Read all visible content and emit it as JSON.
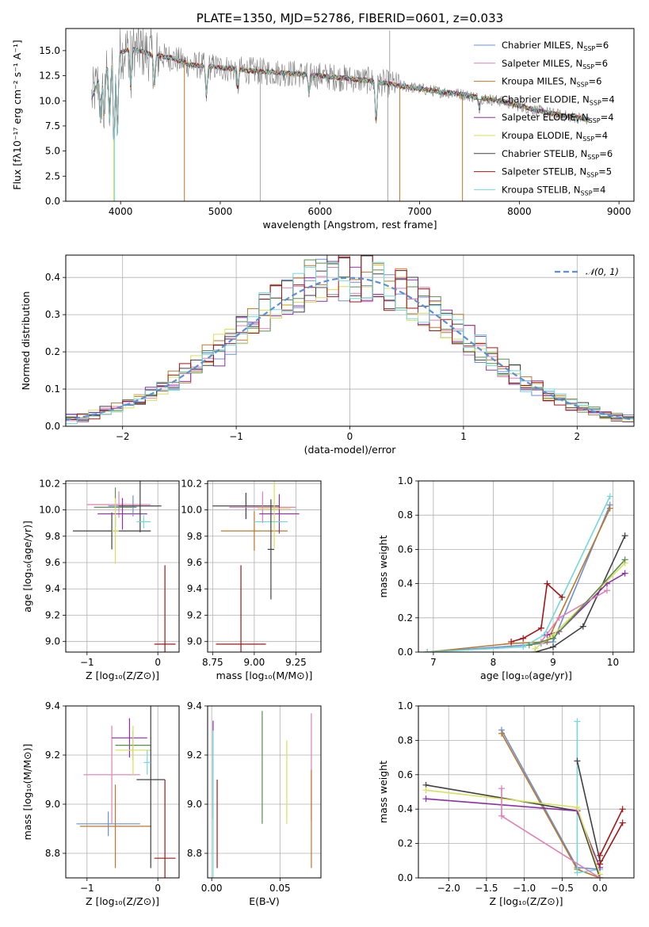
{
  "chart_data": [
    {
      "id": "spectrum",
      "type": "line",
      "title": "PLATE=1350, MJD=52786, FIBERID=0601, z=0.033",
      "xlabel": "wavelength [Angstrom, rest frame]",
      "ylabel": "Flux [fλ10⁻¹⁷ erg cm⁻² s⁻¹ A⁻¹]",
      "xlim": [
        3450,
        9150
      ],
      "ylim": [
        0,
        17.2
      ],
      "xticks": [
        "4000",
        "5000",
        "6000",
        "7000",
        "8000",
        "9000"
      ],
      "yticks": [
        "0.0",
        "2.5",
        "5.0",
        "7.5",
        "10.0",
        "12.5",
        "15.0"
      ],
      "legend_position": "upper-right",
      "series": [
        {
          "name": "Chabrier MILES, N",
          "sub": "SSP",
          "suffix": "=6",
          "color": "#6b8fd6"
        },
        {
          "name": "Salpeter MILES, N",
          "sub": "SSP",
          "suffix": "=6",
          "color": "#e07fb6"
        },
        {
          "name": "Kroupa MILES, N",
          "sub": "SSP",
          "suffix": "=6",
          "color": "#b9782b"
        },
        {
          "name": "Chabrier ELODIE, N",
          "sub": "SSP",
          "suffix": "=4",
          "color": "#5a8f4e"
        },
        {
          "name": "Salpeter ELODIE, N",
          "sub": "SSP",
          "suffix": "=4",
          "color": "#8e2ea8"
        },
        {
          "name": "Kroupa ELODIE, N",
          "sub": "SSP",
          "suffix": "=4",
          "color": "#d6e05a"
        },
        {
          "name": "Chabrier STELIB, N",
          "sub": "SSP",
          "suffix": "=6",
          "color": "#404040"
        },
        {
          "name": "Salpeter STELIB, N",
          "sub": "SSP",
          "suffix": "=5",
          "color": "#a31616"
        },
        {
          "name": "Kroupa STELIB, N",
          "sub": "SSP",
          "suffix": "=4",
          "color": "#72d8dc"
        }
      ],
      "data_color": "#808080",
      "continuum": {
        "x": [
          3700,
          3800,
          3850,
          3900,
          3950,
          4000,
          4100,
          4200,
          4300,
          4500,
          4700,
          5000,
          5300,
          5600,
          5900,
          6200,
          6500,
          6800,
          7000,
          7200,
          7400,
          7600,
          7800,
          8000,
          8200,
          8400,
          8600,
          8700
        ],
        "y": [
          12.0,
          12.5,
          13.2,
          13.8,
          14.5,
          14.8,
          15.2,
          15.0,
          14.6,
          14.3,
          13.6,
          13.3,
          13.0,
          12.8,
          12.6,
          12.3,
          12.0,
          11.5,
          11.2,
          10.9,
          10.7,
          10.3,
          10.0,
          9.5,
          9.0,
          8.6,
          8.3,
          8.1
        ]
      }
    },
    {
      "id": "residuals",
      "type": "histogram",
      "xlabel": "(data-model)/error",
      "ylabel": "Normed distribution",
      "xlim": [
        -2.5,
        2.5
      ],
      "ylim": [
        0,
        0.46
      ],
      "xticks": [
        "−2",
        "−1",
        "0",
        "1",
        "2"
      ],
      "yticks": [
        "0.0",
        "0.1",
        "0.2",
        "0.3",
        "0.4"
      ],
      "legend": "𝒩(0, 1)",
      "legend_position": "upper-right",
      "gauss_color": "#5b8fd6",
      "bins": [
        -2.5,
        -2.4,
        -2.3,
        -2.2,
        -2.1,
        -2.0,
        -1.9,
        -1.8,
        -1.7,
        -1.6,
        -1.5,
        -1.4,
        -1.3,
        -1.2,
        -1.1,
        -1.0,
        -0.9,
        -0.8,
        -0.7,
        -0.6,
        -0.5,
        -0.4,
        -0.3,
        -0.2,
        -0.1,
        0.0,
        0.1,
        0.2,
        0.3,
        0.4,
        0.5,
        0.6,
        0.7,
        0.8,
        0.9,
        1.0,
        1.1,
        1.2,
        1.3,
        1.4,
        1.5,
        1.6,
        1.7,
        1.8,
        1.9,
        2.0,
        2.1,
        2.2,
        2.3,
        2.4,
        2.5
      ]
    },
    {
      "id": "age-vs-z",
      "type": "errorbar",
      "xlabel": "Z [log₁₀(Z/Z⊙)]",
      "ylabel": "age  [log₁₀(age/yr)]",
      "xlim": [
        -1.3,
        0.3
      ],
      "ylim": [
        8.92,
        10.22
      ],
      "xticks": [
        "−1",
        "0"
      ],
      "yticks": [
        "9.0",
        "9.2",
        "9.4",
        "9.6",
        "9.8",
        "10.0",
        "10.2"
      ],
      "points": [
        {
          "x": -0.65,
          "xerr": 0.55,
          "y": 9.84,
          "yerr": 0.14,
          "c": 6
        },
        {
          "x": -0.55,
          "xerr": 0.45,
          "y": 10.04,
          "yerr": 0.1,
          "c": 1
        },
        {
          "x": -0.6,
          "xerr": 0.3,
          "y": 10.02,
          "yerr": 0.15,
          "c": 3
        },
        {
          "x": -0.5,
          "xerr": 0.35,
          "y": 9.97,
          "yerr": 0.12,
          "c": 4
        },
        {
          "x": -0.35,
          "xerr": 0.35,
          "y": 10.03,
          "yerr": 0.08,
          "c": 0
        },
        {
          "x": -0.25,
          "xerr": 0.3,
          "y": 10.03,
          "yerr": 0.2,
          "c": 6
        },
        {
          "x": -0.2,
          "xerr": 0.1,
          "y": 9.91,
          "yerr": 0.05,
          "c": 8
        },
        {
          "x": 0.1,
          "xerr": 0.15,
          "y": 8.98,
          "yerr": 0.6,
          "c": 7
        },
        {
          "x": -0.6,
          "xerr": 0.05,
          "y": 9.84,
          "yerr": 0.25,
          "c": 5
        }
      ]
    },
    {
      "id": "age-vs-mass",
      "type": "errorbar",
      "xlabel": "mass [log₁₀(M/M⊙)]",
      "ylabel": "",
      "xlim": [
        8.72,
        9.4
      ],
      "ylim": [
        8.92,
        10.22
      ],
      "xticks": [
        "8.75",
        "9.00",
        "9.25"
      ],
      "yticks": [
        "9.0",
        "9.2",
        "9.4",
        "9.6",
        "9.8",
        "10.0",
        "10.2"
      ],
      "points": [
        {
          "x": 8.95,
          "xerr": 0.2,
          "y": 10.03,
          "yerr": 0.1,
          "c": 6
        },
        {
          "x": 9.05,
          "xerr": 0.2,
          "y": 10.02,
          "yerr": 0.12,
          "c": 1
        },
        {
          "x": 9.0,
          "xerr": 0.2,
          "y": 9.84,
          "yerr": 0.15,
          "c": 2
        },
        {
          "x": 9.15,
          "xerr": 0.12,
          "y": 9.97,
          "yerr": 0.15,
          "c": 4
        },
        {
          "x": 9.12,
          "xerr": 0.1,
          "y": 10.01,
          "yerr": 0.3,
          "c": 5
        },
        {
          "x": 9.1,
          "xerr": 0.1,
          "y": 9.91,
          "yerr": 0.05,
          "c": 8
        },
        {
          "x": 8.92,
          "xerr": 0.15,
          "y": 8.98,
          "yerr": 0.6,
          "c": 7
        },
        {
          "x": 9.1,
          "xerr": 0.02,
          "y": 9.7,
          "yerr": 0.38,
          "c": 6
        }
      ]
    },
    {
      "id": "massweight-vs-age",
      "type": "line",
      "xlabel": "age  [log₁₀(age/yr)]",
      "ylabel": "mass weight",
      "xlim": [
        6.75,
        10.35
      ],
      "ylim": [
        0,
        1.0
      ],
      "xticks": [
        "7",
        "8",
        "9",
        "10"
      ],
      "yticks": [
        "0.0",
        "0.2",
        "0.4",
        "0.6",
        "0.8",
        "1.0"
      ],
      "series": [
        {
          "c": 0,
          "x": [
            6.9,
            8.5,
            8.8,
            9.0,
            9.95
          ],
          "y": [
            0.0,
            0.04,
            0.05,
            0.06,
            0.86
          ]
        },
        {
          "c": 2,
          "x": [
            6.9,
            8.3,
            8.9,
            9.95
          ],
          "y": [
            0.0,
            0.05,
            0.06,
            0.84
          ]
        },
        {
          "c": 8,
          "x": [
            6.9,
            8.5,
            8.85,
            9.95
          ],
          "y": [
            0.0,
            0.03,
            0.1,
            0.91
          ]
        },
        {
          "c": 7,
          "x": [
            8.3,
            8.5,
            8.8,
            8.9,
            9.15
          ],
          "y": [
            0.06,
            0.08,
            0.14,
            0.4,
            0.32
          ]
        },
        {
          "c": 6,
          "x": [
            8.7,
            9.0,
            9.5,
            10.2
          ],
          "y": [
            0.0,
            0.03,
            0.15,
            0.68
          ]
        },
        {
          "c": 4,
          "x": [
            8.9,
            9.1,
            9.9,
            10.2
          ],
          "y": [
            0.1,
            0.12,
            0.4,
            0.46
          ]
        },
        {
          "c": 5,
          "x": [
            8.7,
            9.0,
            10.2
          ],
          "y": [
            0.02,
            0.1,
            0.52
          ]
        },
        {
          "c": 1,
          "x": [
            8.8,
            9.1,
            9.9
          ],
          "y": [
            0.06,
            0.2,
            0.36
          ]
        },
        {
          "c": 3,
          "x": [
            8.6,
            9.0,
            10.2
          ],
          "y": [
            0.04,
            0.08,
            0.54
          ]
        }
      ]
    },
    {
      "id": "mass-vs-z",
      "type": "errorbar",
      "xlabel": "Z [log₁₀(Z/Z⊙)]",
      "ylabel": "mass [log₁₀(M/M⊙)]",
      "xlim": [
        -1.3,
        0.3
      ],
      "ylim": [
        8.7,
        9.4
      ],
      "xticks": [
        "−1",
        "0"
      ],
      "yticks": [
        "8.8",
        "9.0",
        "9.2",
        "9.4"
      ],
      "points": [
        {
          "x": -0.7,
          "xerr": 0.45,
          "y": 8.92,
          "yerr": 0.05,
          "c": 0
        },
        {
          "x": -0.6,
          "xerr": 0.5,
          "y": 8.91,
          "yerr": 0.17,
          "c": 2
        },
        {
          "x": -0.65,
          "xerr": 0.4,
          "y": 9.12,
          "yerr": 0.2,
          "c": 1
        },
        {
          "x": -0.4,
          "xerr": 0.25,
          "y": 9.27,
          "yerr": 0.08,
          "c": 4
        },
        {
          "x": -0.35,
          "xerr": 0.25,
          "y": 9.24,
          "yerr": 0.06,
          "c": 3
        },
        {
          "x": -0.35,
          "xerr": 0.25,
          "y": 9.22,
          "yerr": 0.1,
          "c": 5
        },
        {
          "x": -0.1,
          "xerr": 0.2,
          "y": 9.1,
          "yerr": 0.36,
          "c": 6
        },
        {
          "x": -0.15,
          "xerr": 0.05,
          "y": 9.17,
          "yerr": 0.05,
          "c": 8
        },
        {
          "x": 0.1,
          "xerr": 0.15,
          "y": 8.78,
          "yerr": 0.32,
          "c": 7
        }
      ]
    },
    {
      "id": "mass-vs-ebv",
      "type": "errorbar",
      "xlabel": "E(B-V)",
      "ylabel": "",
      "xlim": [
        -0.003,
        0.08
      ],
      "ylim": [
        8.7,
        9.4
      ],
      "xticks": [
        "0.00",
        "0.05"
      ],
      "yticks": [
        "8.8",
        "9.0",
        "9.2",
        "9.4"
      ],
      "points": [
        {
          "x": 0.001,
          "xerr": 0,
          "y": 9.14,
          "yerr": 0.2,
          "c": 4
        },
        {
          "x": 0.001,
          "xerr": 0,
          "y": 9.0,
          "yerr": 0.3,
          "c": 8
        },
        {
          "x": 0.004,
          "xerr": 0,
          "y": 8.92,
          "yerr": 0.18,
          "c": 7
        },
        {
          "x": 0.037,
          "xerr": 0,
          "y": 9.15,
          "yerr": 0.23,
          "c": 3
        },
        {
          "x": 0.055,
          "xerr": 0,
          "y": 9.09,
          "yerr": 0.17,
          "c": 5
        },
        {
          "x": 0.073,
          "xerr": 0,
          "y": 9.15,
          "yerr": 0.22,
          "c": 1
        },
        {
          "x": 0.073,
          "xerr": 0,
          "y": 8.94,
          "yerr": 0.2,
          "c": 2
        }
      ]
    },
    {
      "id": "massweight-vs-z",
      "type": "line",
      "xlabel": "Z [log₁₀(Z/Z⊙)]",
      "ylabel": "mass weight",
      "xlim": [
        -2.4,
        0.45
      ],
      "ylim": [
        0,
        1.0
      ],
      "xticks": [
        "−2.0",
        "−1.5",
        "−1.0",
        "−0.5",
        "0.0"
      ],
      "yticks": [
        "0.0",
        "0.2",
        "0.4",
        "0.6",
        "0.8",
        "1.0"
      ],
      "series": [
        {
          "c": 0,
          "x": [
            -1.3,
            -0.3,
            0.0
          ],
          "y": [
            0.86,
            0.06,
            0.05
          ]
        },
        {
          "c": 2,
          "x": [
            -1.3,
            -0.3,
            0.0
          ],
          "y": [
            0.84,
            0.05,
            0.0
          ]
        },
        {
          "c": 8,
          "x": [
            -0.3,
            -0.3,
            0.0
          ],
          "y": [
            0.91,
            0.03,
            0.05
          ]
        },
        {
          "c": 6,
          "x": [
            -2.3,
            -0.3,
            0.0
          ],
          "y": [
            0.54,
            0.39,
            0.0
          ]
        },
        {
          "c": 6,
          "x": [
            -0.3,
            0.0
          ],
          "y": [
            0.68,
            0.1
          ]
        },
        {
          "c": 4,
          "x": [
            -2.3,
            -0.3,
            0.0
          ],
          "y": [
            0.46,
            0.39,
            0.06
          ]
        },
        {
          "c": 5,
          "x": [
            -2.3,
            -0.3,
            0.0
          ],
          "y": [
            0.51,
            0.41,
            0.02
          ]
        },
        {
          "c": 1,
          "x": [
            -1.3,
            -1.3,
            0.0
          ],
          "y": [
            0.52,
            0.36,
            0.0
          ]
        },
        {
          "c": 7,
          "x": [
            0.0,
            0.3
          ],
          "y": [
            0.13,
            0.4
          ]
        },
        {
          "c": 7,
          "x": [
            0.0,
            0.3
          ],
          "y": [
            0.08,
            0.32
          ]
        }
      ]
    }
  ]
}
